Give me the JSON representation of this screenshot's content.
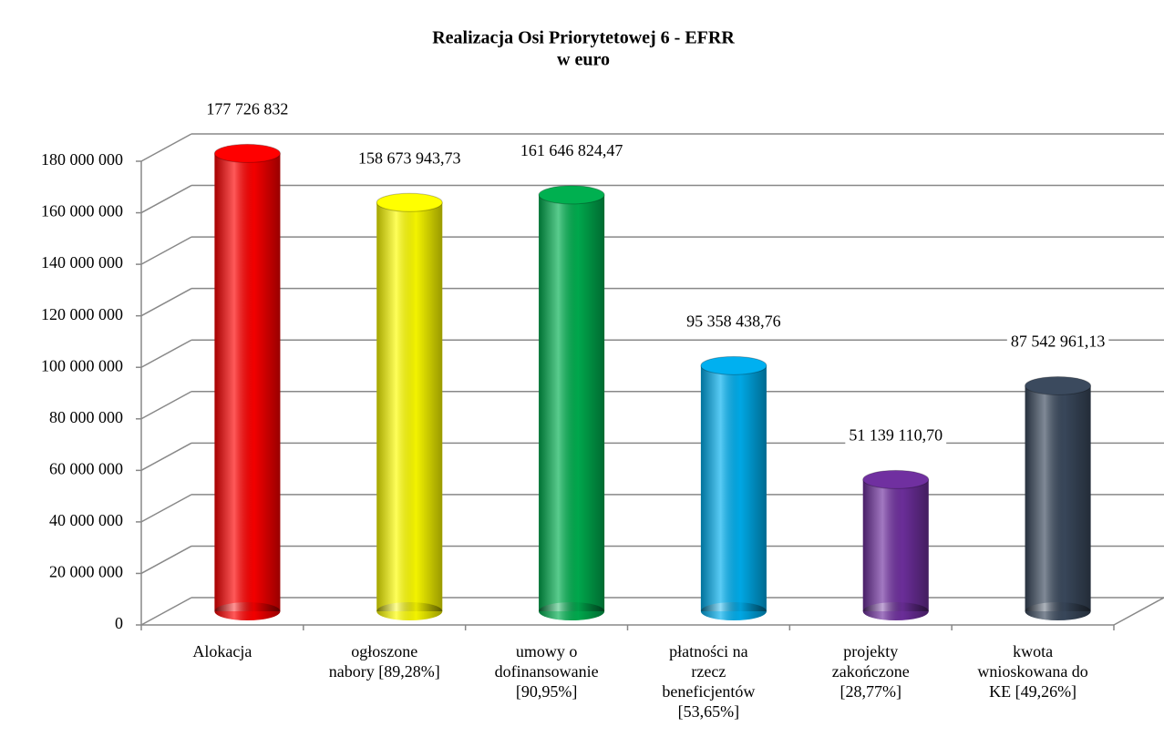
{
  "chart_data": {
    "type": "bar3d",
    "title": "Realizacja Osi Priorytetowej 6 - EFRR",
    "subtitle": "w euro",
    "categories": [
      "Alokacja",
      "ogłoszone nabory [89,28%]",
      "umowy o dofinansowanie [90,95%]",
      "płatności na rzecz beneficjentów [53,65%]",
      "projekty zakończone [28,77%]",
      "kwota wnioskowana do KE [49,26%]"
    ],
    "values": [
      177726832,
      158673943.73,
      161646824.47,
      95358438.76,
      51139110.7,
      87542961.13
    ],
    "value_labels": [
      "177 726 832",
      "158 673 943,73",
      "161 646 824,47",
      "95 358 438,76",
      "51 139 110,70",
      "87 542 961,13"
    ],
    "colors": [
      "#ff0000",
      "#ffff00",
      "#00b050",
      "#00b0f0",
      "#7030a0",
      "#3b4a5e"
    ],
    "ylim": [
      0,
      180000000
    ],
    "yticks": [
      0,
      {
        "value": 20000000,
        "label": "20 000 000"
      },
      {
        "value": 40000000,
        "label": "40 000 000"
      },
      {
        "value": 60000000,
        "label": "60 000 000"
      },
      {
        "value": 80000000,
        "label": "80 000 000"
      },
      {
        "value": 100000000,
        "label": "100 000 000"
      },
      {
        "value": 120000000,
        "label": "120 000 000"
      },
      {
        "value": 140000000,
        "label": "140 000 000"
      },
      {
        "value": 160000000,
        "label": "160 000 000"
      },
      {
        "value": 180000000,
        "label": "180 000 000"
      }
    ],
    "grid": true
  }
}
